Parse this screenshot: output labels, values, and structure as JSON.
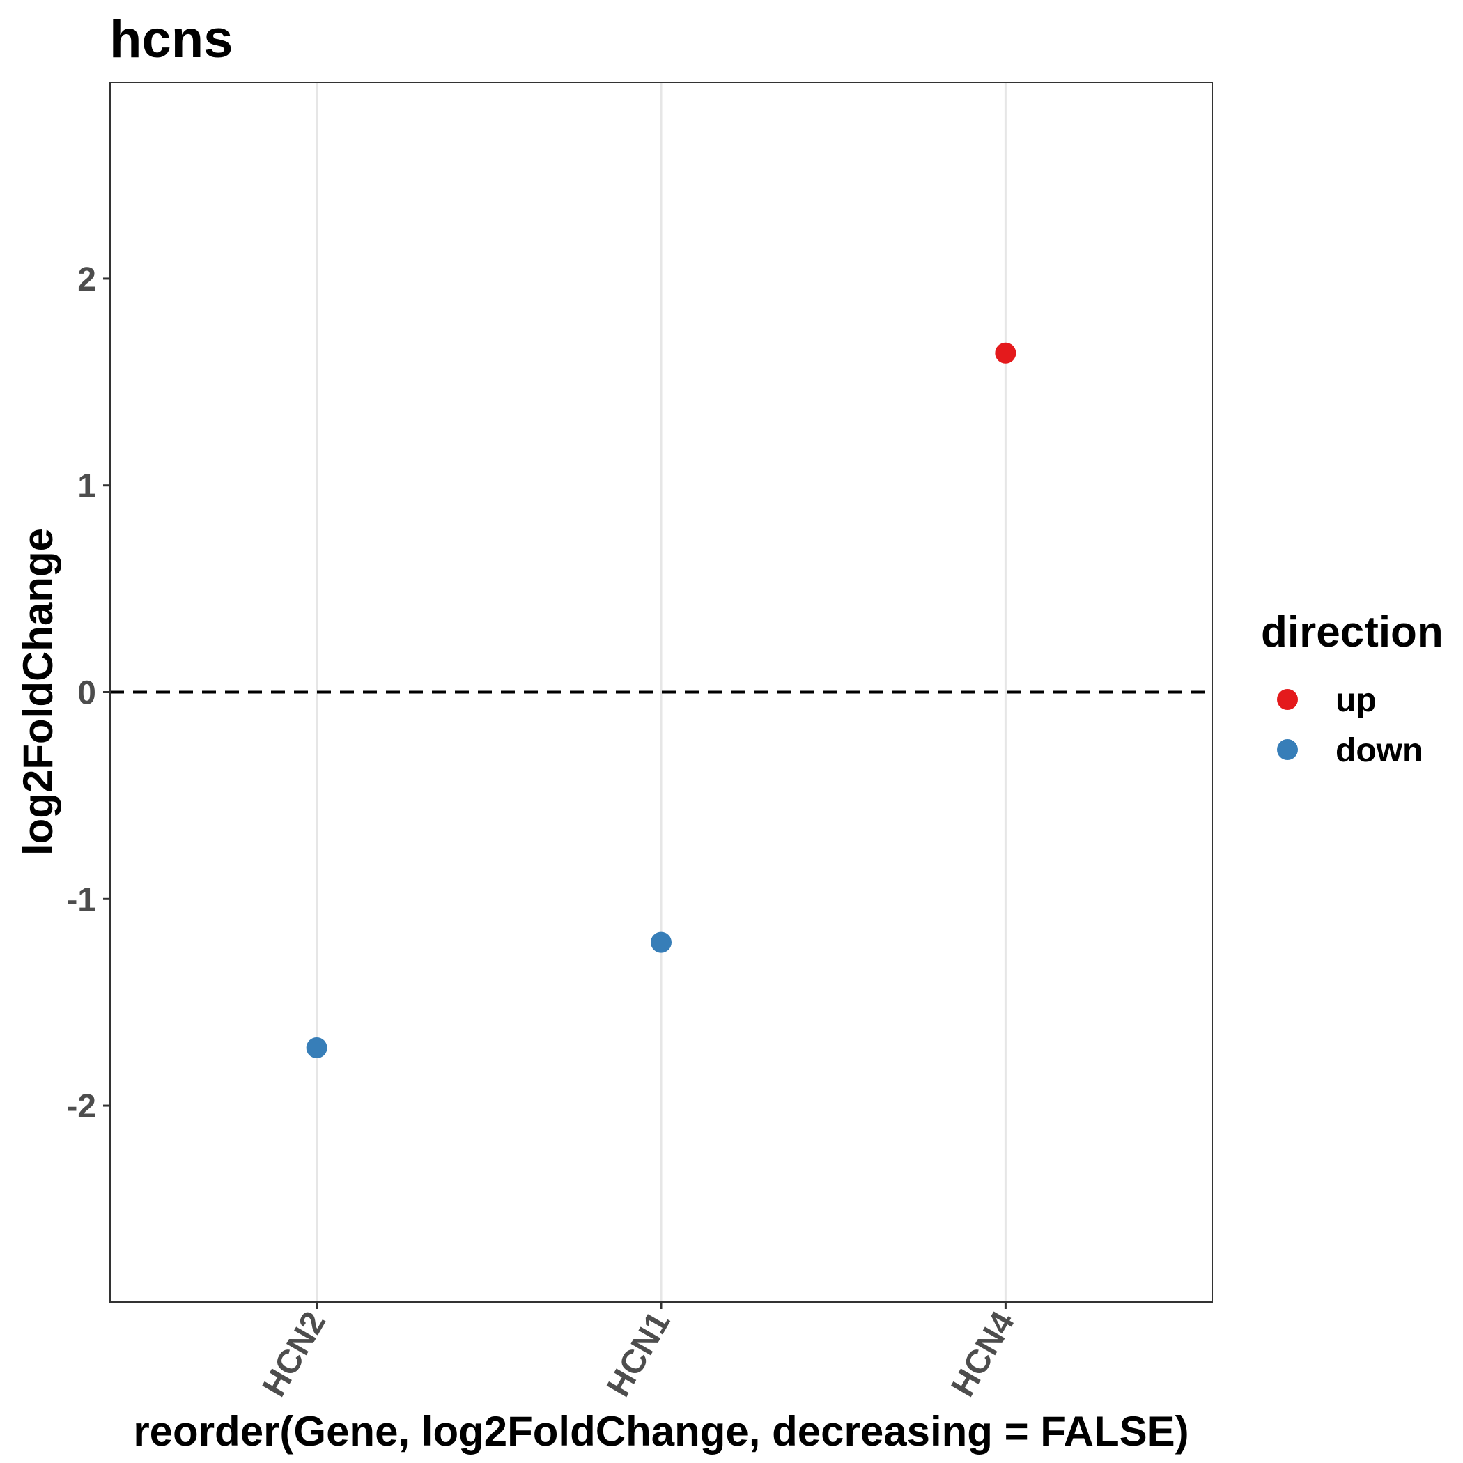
{
  "chart_data": {
    "type": "scatter",
    "title": "hcns",
    "xlabel": "reorder(Gene, log2FoldChange, decreasing = FALSE)",
    "ylabel": "log2FoldChange",
    "categories": [
      "HCN2",
      "HCN1",
      "HCN4"
    ],
    "ylim": [
      -2.95,
      2.95
    ],
    "yticks": [
      -2,
      -1,
      0,
      1,
      2
    ],
    "ytick_labels": [
      "-2",
      "-1",
      "0",
      "1",
      "2"
    ],
    "reference_line": {
      "y": 0,
      "style": "dashed"
    },
    "grid": {
      "major_x": true,
      "major_y": false
    },
    "points": [
      {
        "x": "HCN2",
        "y": -1.72,
        "direction": "down"
      },
      {
        "x": "HCN1",
        "y": -1.21,
        "direction": "down"
      },
      {
        "x": "HCN4",
        "y": 1.64,
        "direction": "up"
      }
    ],
    "legend": {
      "title": "direction",
      "position": "right",
      "items": [
        {
          "label": "up",
          "color": "#e41a1c"
        },
        {
          "label": "down",
          "color": "#377eb8"
        }
      ]
    }
  }
}
